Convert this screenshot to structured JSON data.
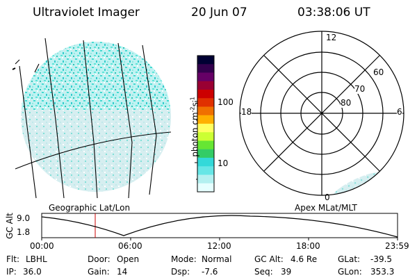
{
  "header": {
    "instrument": "Ultraviolet Imager",
    "date": "20 Jun 07",
    "time": "03:38:06 UT"
  },
  "geo_map": {
    "label": "Geographic Lat/Lon"
  },
  "colorbar": {
    "unit_label": "photon cm",
    "unit_sup1": "-2",
    "unit_mid": "s",
    "unit_sup2": "-1",
    "ticks": [
      "100",
      "10"
    ],
    "colors": [
      "#000033",
      "#33004d",
      "#660066",
      "#990033",
      "#cc0000",
      "#e03000",
      "#f07000",
      "#ffb000",
      "#ffff60",
      "#ccff33",
      "#66e633",
      "#33cc66",
      "#33d9d9",
      "#66e6e6",
      "#b3f0f0",
      "#e6ffff"
    ]
  },
  "polar": {
    "label": "Apex MLat/MLT",
    "mlt_labels": {
      "top": "12",
      "left": "18",
      "right": "6",
      "bottom": "0"
    },
    "lat_labels": [
      "60",
      "70",
      "80"
    ]
  },
  "altitude_plot": {
    "ylabel": "GC Alt",
    "yticks": [
      "9.0",
      "1.8"
    ],
    "xticks": [
      "00:00",
      "06:00",
      "12:00",
      "18:00",
      "23:59"
    ]
  },
  "status": {
    "filter_label": "Flt:",
    "filter_value": "LBHL",
    "door_label": "Door:",
    "door_value": "Open",
    "mode_label": "Mode:",
    "mode_value": "Normal",
    "gcalt_label": "GC Alt:",
    "gcalt_value": "4.6 Re",
    "glat_label": "GLat:",
    "glat_value": "-39.5",
    "ip_label": "IP:",
    "ip_value": "36.0",
    "gain_label": "Gain:",
    "gain_value": "14",
    "dsp_label": "Dsp:",
    "dsp_value": "-7.6",
    "seq_label": "Seq:",
    "seq_value": "39",
    "glon_label": "GLon:",
    "glon_value": "353.3"
  }
}
